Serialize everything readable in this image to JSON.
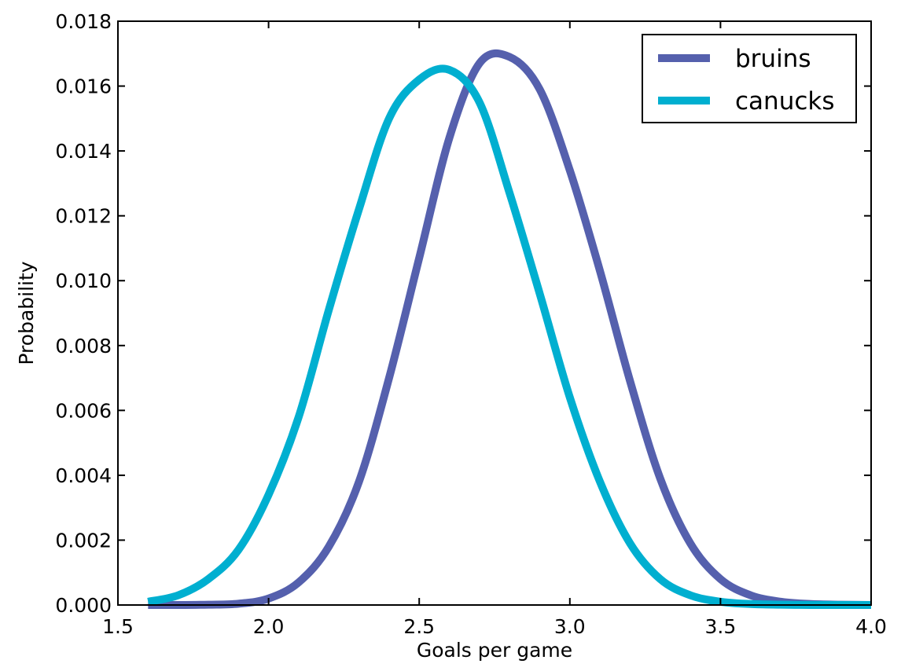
{
  "chart_data": {
    "type": "line",
    "title": "",
    "xlabel": "Goals per game",
    "ylabel": "Probability",
    "xlim": [
      1.5,
      4.0
    ],
    "ylim": [
      0.0,
      0.018
    ],
    "xticks": [
      "1.5",
      "2.0",
      "2.5",
      "3.0",
      "3.5",
      "4.0"
    ],
    "yticks": [
      "0.000",
      "0.002",
      "0.004",
      "0.006",
      "0.008",
      "0.010",
      "0.012",
      "0.014",
      "0.016",
      "0.018"
    ],
    "grid": false,
    "legend_position": "top-right",
    "x": [
      1.6,
      1.7,
      1.8,
      1.9,
      2.0,
      2.1,
      2.2,
      2.3,
      2.4,
      2.5,
      2.6,
      2.7,
      2.8,
      2.9,
      3.0,
      3.1,
      3.2,
      3.3,
      3.4,
      3.5,
      3.6,
      3.7,
      3.8,
      3.9,
      4.0
    ],
    "series": [
      {
        "name": "bruins",
        "color": "#5560ad",
        "values": [
          0.0,
          0.0,
          1e-05,
          4e-05,
          0.0002,
          0.0007,
          0.0018,
          0.0038,
          0.007,
          0.0107,
          0.0144,
          0.0167,
          0.0169,
          0.0159,
          0.0134,
          0.0103,
          0.0069,
          0.0039,
          0.0019,
          0.0008,
          0.0003,
          0.0001,
          3e-05,
          1e-05,
          0.0
        ]
      },
      {
        "name": "canucks",
        "color": "#00afd0",
        "values": [
          0.0001,
          0.0003,
          0.0008,
          0.0017,
          0.0034,
          0.0058,
          0.0091,
          0.0122,
          0.015,
          0.0162,
          0.0165,
          0.0155,
          0.0127,
          0.0096,
          0.0064,
          0.0038,
          0.0019,
          0.0008,
          0.0003,
          0.0001,
          3e-05,
          1e-05,
          0.0,
          0.0,
          0.0
        ]
      }
    ]
  }
}
